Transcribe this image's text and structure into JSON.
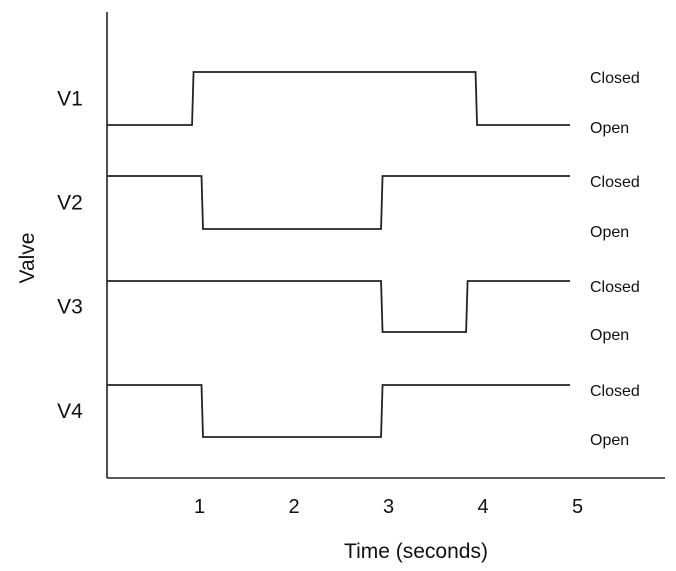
{
  "chart_data": {
    "type": "line",
    "title": "",
    "xlabel": "Time (seconds)",
    "ylabel": "Valve",
    "xlim": [
      0,
      5.9
    ],
    "x_ticks": [
      "1",
      "2",
      "3",
      "4",
      "5"
    ],
    "state_labels": {
      "closed": "Closed",
      "open": "Open"
    },
    "colors": {
      "line": "#222222",
      "axis": "#222222",
      "text": "#111111"
    },
    "series": [
      {
        "name": "V1",
        "steps": [
          {
            "t": 0,
            "state": "Open"
          },
          {
            "t": 0.9,
            "state": "Closed"
          },
          {
            "t": 3.9,
            "state": "Open"
          },
          {
            "t": 4.9,
            "state": "Open"
          }
        ]
      },
      {
        "name": "V2",
        "steps": [
          {
            "t": 0,
            "state": "Closed"
          },
          {
            "t": 1.0,
            "state": "Open"
          },
          {
            "t": 2.9,
            "state": "Closed"
          },
          {
            "t": 4.9,
            "state": "Closed"
          }
        ]
      },
      {
        "name": "V3",
        "steps": [
          {
            "t": 0,
            "state": "Closed"
          },
          {
            "t": 2.9,
            "state": "Open"
          },
          {
            "t": 3.8,
            "state": "Closed"
          },
          {
            "t": 4.9,
            "state": "Closed"
          }
        ]
      },
      {
        "name": "V4",
        "steps": [
          {
            "t": 0,
            "state": "Closed"
          },
          {
            "t": 1.0,
            "state": "Open"
          },
          {
            "t": 2.9,
            "state": "Closed"
          },
          {
            "t": 4.9,
            "state": "Closed"
          }
        ]
      }
    ]
  }
}
